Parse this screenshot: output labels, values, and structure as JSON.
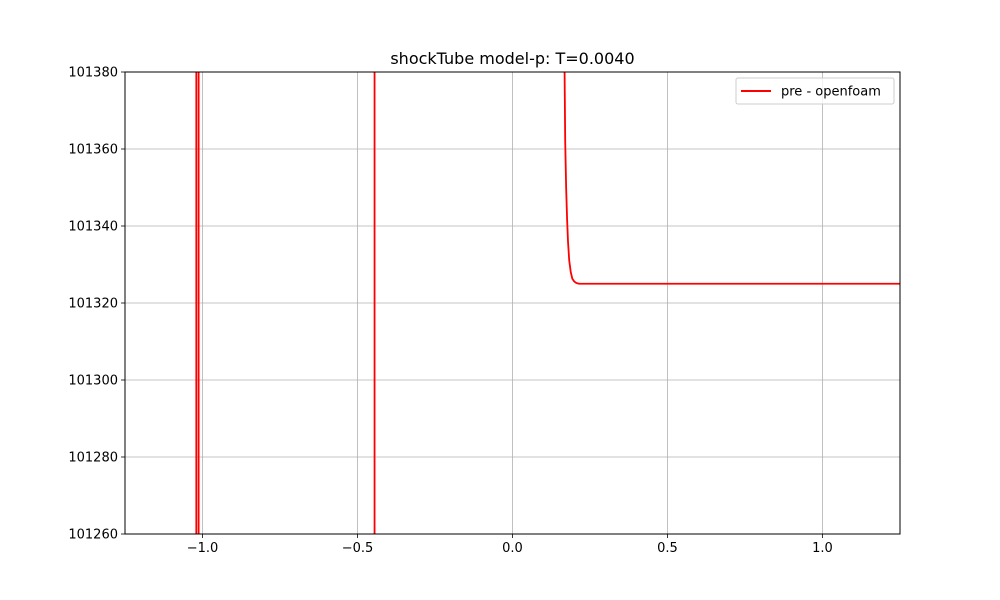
{
  "chart_data": {
    "type": "line",
    "title": "shockTube model-p: T=0.0040",
    "xlabel": "",
    "ylabel": "",
    "xlim": [
      -1.25,
      1.25
    ],
    "ylim": [
      101260,
      101380
    ],
    "xticks": [
      -1.0,
      -0.5,
      0.0,
      0.5,
      1.0
    ],
    "xtick_labels": [
      "−1.0",
      "−0.5",
      "0.0",
      "0.5",
      "1.0"
    ],
    "yticks": [
      101260,
      101280,
      101300,
      101320,
      101340,
      101360,
      101380
    ],
    "ytick_labels": [
      "101260",
      "101280",
      "101300",
      "101320",
      "101340",
      "101360",
      "101380"
    ],
    "grid": true,
    "legend_position": "top-right",
    "series": [
      {
        "name": "pre - openfoam",
        "color": "#ff0000",
        "segments": [
          {
            "x": [
              -1.02,
              -1.02
            ],
            "y": [
              101260,
              101380
            ]
          },
          {
            "x": [
              -1.0125,
              -1.0125
            ],
            "y": [
              101380,
              101260
            ]
          },
          {
            "x": [
              -0.445,
              -0.445
            ],
            "y": [
              101260,
              101380
            ]
          },
          {
            "x": [
              0.168,
              0.17,
              0.173,
              0.176,
              0.179,
              0.183,
              0.188,
              0.193,
              0.199,
              0.206,
              0.215,
              0.23,
              0.26,
              0.4,
              0.7,
              1.0,
              1.25
            ],
            "y": [
              101380,
              101362,
              101350,
              101342,
              101336,
              101331,
              101328,
              101326.3,
              101325.6,
              101325.2,
              101325,
              101325,
              101325,
              101325,
              101325,
              101325,
              101325
            ]
          }
        ]
      }
    ]
  }
}
